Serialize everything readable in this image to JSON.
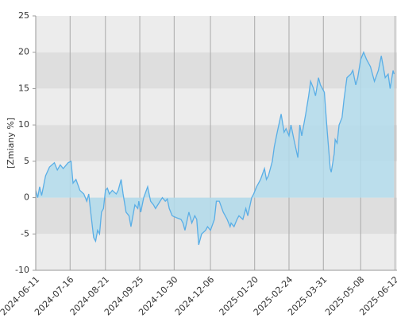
{
  "chart_data": {
    "type": "area",
    "y_label": "[Zmiany %]",
    "x": [
      "2024-06-11",
      "2024-06-13",
      "2024-06-15",
      "2024-06-17",
      "2024-06-21",
      "2024-06-25",
      "2024-06-30",
      "2024-07-03",
      "2024-07-06",
      "2024-07-09",
      "2024-07-14",
      "2024-07-17",
      "2024-07-19",
      "2024-07-22",
      "2024-07-26",
      "2024-07-30",
      "2024-08-02",
      "2024-08-04",
      "2024-08-06",
      "2024-08-09",
      "2024-08-11",
      "2024-08-13",
      "2024-08-15",
      "2024-08-17",
      "2024-08-19",
      "2024-08-21",
      "2024-08-23",
      "2024-08-25",
      "2024-08-28",
      "2024-09-01",
      "2024-09-03",
      "2024-09-06",
      "2024-09-08",
      "2024-09-11",
      "2024-09-14",
      "2024-09-16",
      "2024-09-20",
      "2024-09-23",
      "2024-09-24",
      "2024-09-26",
      "2024-09-29",
      "2024-10-03",
      "2024-10-06",
      "2024-10-09",
      "2024-10-11",
      "2024-10-18",
      "2024-10-21",
      "2024-10-23",
      "2024-10-25",
      "2024-10-28",
      "2024-11-02",
      "2024-11-06",
      "2024-11-08",
      "2024-11-10",
      "2024-11-14",
      "2024-11-17",
      "2024-11-20",
      "2024-11-22",
      "2024-11-24",
      "2024-11-27",
      "2024-12-01",
      "2024-12-03",
      "2024-12-06",
      "2024-12-10",
      "2024-12-12",
      "2024-12-15",
      "2024-12-19",
      "2024-12-23",
      "2024-12-26",
      "2024-12-27",
      "2024-12-30",
      "2025-01-02",
      "2025-01-04",
      "2025-01-08",
      "2025-01-11",
      "2025-01-13",
      "2025-01-17",
      "2025-01-19",
      "2025-01-22",
      "2025-01-26",
      "2025-01-30",
      "2025-02-01",
      "2025-02-03",
      "2025-02-07",
      "2025-02-09",
      "2025-02-12",
      "2025-02-16",
      "2025-02-19",
      "2025-02-21",
      "2025-02-24",
      "2025-02-26",
      "2025-03-01",
      "2025-03-05",
      "2025-03-07",
      "2025-03-09",
      "2025-03-13",
      "2025-03-16",
      "2025-03-18",
      "2025-03-21",
      "2025-03-23",
      "2025-03-26",
      "2025-03-28",
      "2025-04-01",
      "2025-04-04",
      "2025-04-07",
      "2025-04-08",
      "2025-04-11",
      "2025-04-12",
      "2025-04-14",
      "2025-04-16",
      "2025-04-19",
      "2025-04-21",
      "2025-04-24",
      "2025-04-28",
      "2025-04-30",
      "2025-05-03",
      "2025-05-05",
      "2025-05-08",
      "2025-05-11",
      "2025-05-14",
      "2025-05-18",
      "2025-05-22",
      "2025-05-26",
      "2025-05-29",
      "2025-06-02",
      "2025-06-05",
      "2025-06-07",
      "2025-06-10",
      "2025-06-11"
    ],
    "values": [
      1,
      0,
      1.5,
      0.3,
      3,
      4.2,
      4.8,
      3.8,
      4.5,
      4,
      4.8,
      5,
      2,
      2.5,
      1,
      0.5,
      -0.5,
      0.5,
      -2,
      -5.5,
      -6,
      -4.5,
      -5,
      -2,
      -1.5,
      1,
      1.3,
      0.5,
      1,
      0.5,
      1,
      2.5,
      0.5,
      -2,
      -2.5,
      -4,
      -1,
      -1.5,
      -0.5,
      -2,
      0,
      1.5,
      -0.5,
      -1,
      -1.5,
      0,
      -0.5,
      -0.2,
      -1.5,
      -2.5,
      -2.8,
      -3,
      -3.5,
      -4.5,
      -2,
      -3.5,
      -2.5,
      -3,
      -6.5,
      -5,
      -4.5,
      -4,
      -4.5,
      -3,
      -0.5,
      -0.5,
      -2,
      -3,
      -4,
      -3.5,
      -4,
      -3,
      -2.5,
      -3,
      -1.5,
      -2.5,
      0,
      0.5,
      1.5,
      2.5,
      4,
      2.5,
      3,
      5,
      7,
      9,
      11.5,
      9,
      9.5,
      8.5,
      10,
      8,
      5.5,
      10,
      8.5,
      11.5,
      14,
      16,
      15,
      14,
      16.5,
      15.5,
      14.5,
      9,
      4,
      3.5,
      6,
      8,
      7.5,
      10,
      11,
      13.5,
      16.5,
      17,
      17.5,
      15.5,
      16.5,
      19,
      20,
      19,
      18,
      16,
      17.5,
      19.5,
      16.5,
      17,
      15,
      17.5,
      17
    ],
    "line_color": "#5aaee6",
    "fill_color": "#b3dcec",
    "xlim": [
      "2024-06-11",
      "2025-06-14"
    ],
    "xticks": [
      "2024-06-11",
      "2024-07-16",
      "2024-08-21",
      "2024-09-25",
      "2024-10-30",
      "2024-12-06",
      "2025-01-20",
      "2025-02-24",
      "2025-03-31",
      "2025-05-08",
      "2025-06-12"
    ],
    "ylim": [
      -10,
      25
    ],
    "yticks": [
      -10,
      -5,
      0,
      5,
      10,
      15,
      20,
      25
    ],
    "grid": true
  }
}
